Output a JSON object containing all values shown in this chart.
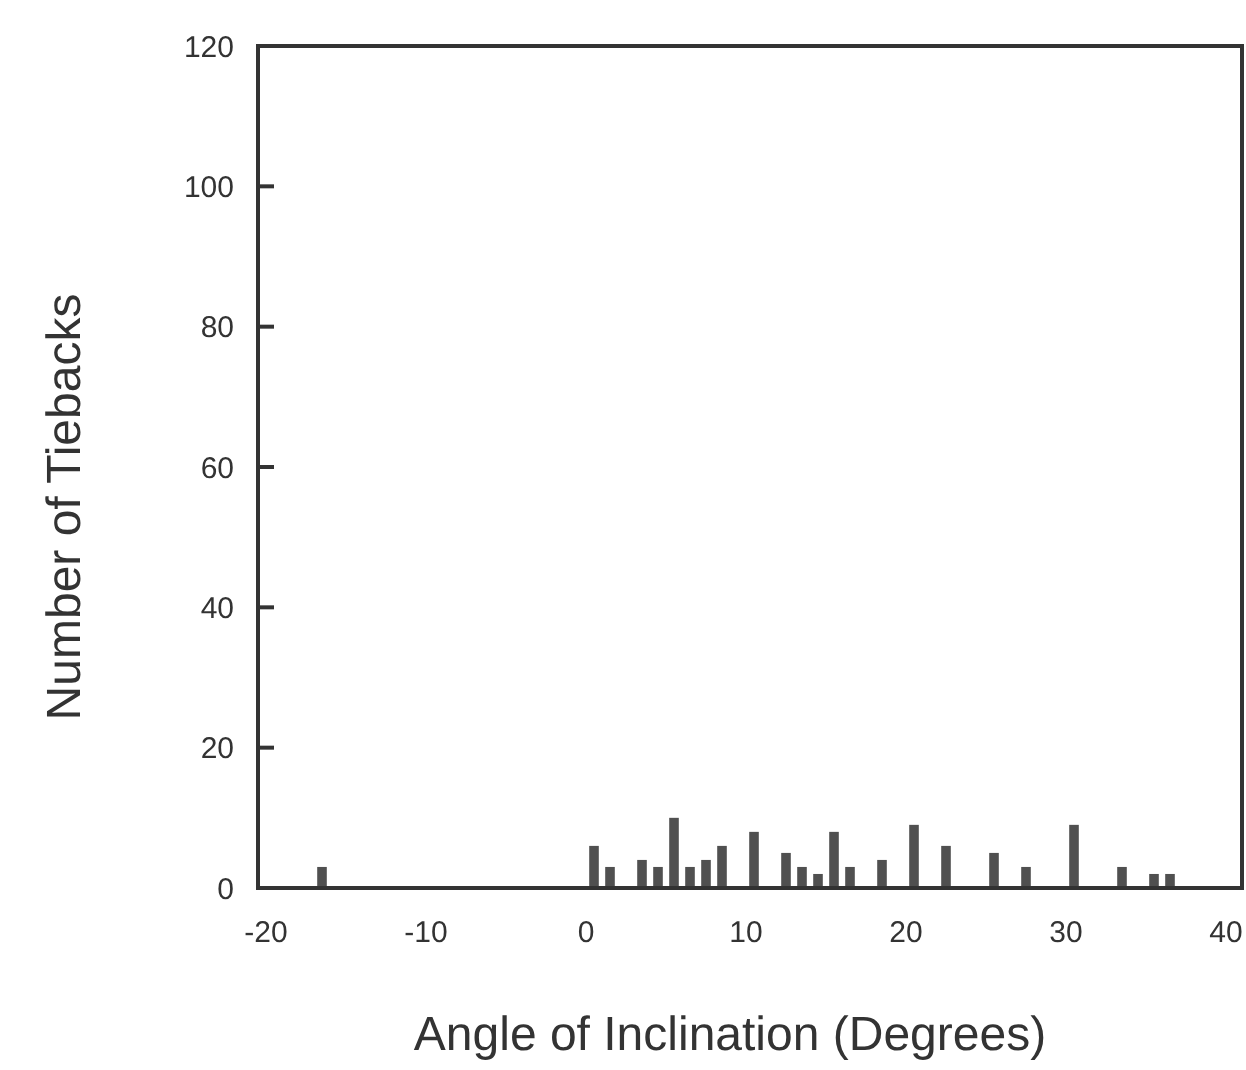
{
  "chart_data": {
    "type": "histogram",
    "xlabel": "Angle of Inclination (Degrees)",
    "ylabel": "Number of Tiebacks",
    "bins": [
      -20,
      -19,
      -18,
      -17,
      -16,
      -15,
      -14,
      -13,
      -12,
      -11,
      -10,
      -9,
      -8,
      -7,
      -6,
      -5,
      -4,
      -3,
      -2,
      -1,
      0,
      1,
      2,
      3,
      4,
      5,
      6,
      7,
      8,
      9,
      10,
      11,
      12,
      13,
      14,
      15,
      16,
      17,
      18,
      19,
      20,
      21,
      22,
      23,
      24,
      25,
      26,
      27,
      28,
      29,
      30,
      31,
      32,
      33,
      34,
      35,
      36,
      37,
      38,
      39,
      40
    ],
    "values": [
      0,
      0,
      0,
      3,
      0,
      0,
      0,
      0,
      0,
      0,
      0,
      0,
      0,
      0,
      0,
      0,
      0,
      0,
      0,
      0,
      6,
      3,
      0,
      4,
      3,
      10,
      3,
      4,
      6,
      0,
      8,
      0,
      5,
      3,
      2,
      8,
      3,
      0,
      4,
      0,
      9,
      0,
      6,
      0,
      0,
      5,
      0,
      3,
      0,
      0,
      9,
      0,
      0,
      3,
      0,
      2,
      2,
      0,
      0,
      0
    ],
    "color": "#505050",
    "xlim": [
      -20.5,
      41
    ],
    "ylim": [
      0,
      120
    ],
    "xticks": [
      -20,
      -10,
      0,
      10,
      20,
      30,
      40
    ],
    "yticks": [
      0,
      20,
      40,
      60,
      80,
      100,
      120
    ]
  }
}
